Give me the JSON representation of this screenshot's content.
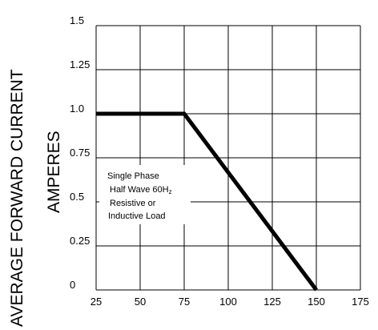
{
  "chart_data": {
    "type": "line",
    "ylabel_line1": "AVERAGE FORWARD CURRENT",
    "ylabel_line2": "AMPERES",
    "xlim": [
      25,
      175
    ],
    "ylim": [
      0,
      1.5
    ],
    "x_ticks": [
      25,
      50,
      75,
      100,
      125,
      150,
      175
    ],
    "y_ticks": [
      0,
      0.25,
      0.5,
      0.75,
      1.0,
      1.25,
      1.5
    ],
    "x_tick_labels": [
      "25",
      "50",
      "75",
      "100",
      "125",
      "150",
      "175"
    ],
    "y_tick_labels": [
      "0",
      "0.25",
      "0.5",
      "0.75",
      "1.0",
      "1.25",
      "1.5"
    ],
    "grid": true,
    "annotation": {
      "lines": [
        "Single Phase",
        "Half Wave 60H",
        "Resistive or",
        "Inductive Load"
      ],
      "subscript": "z"
    },
    "series": [
      {
        "x": [
          25,
          75,
          150
        ],
        "y": [
          1.0,
          1.0,
          0
        ]
      }
    ]
  }
}
